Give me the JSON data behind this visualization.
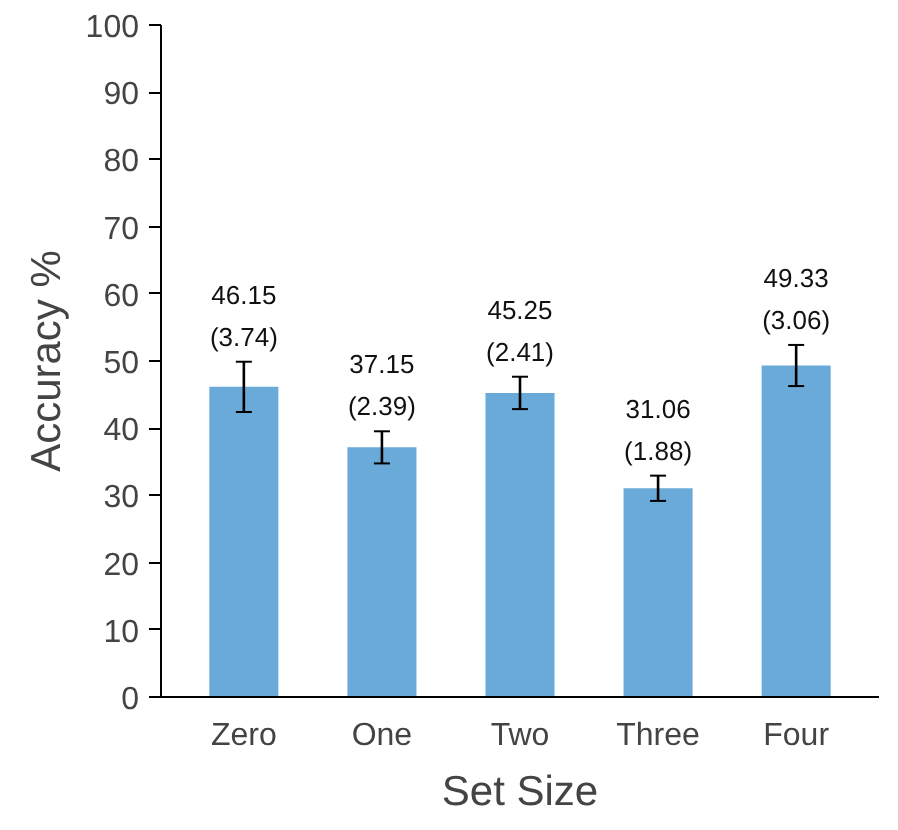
{
  "chart_data": {
    "type": "bar",
    "xlabel": "Set Size",
    "ylabel": "Accuracy %",
    "categories": [
      "Zero",
      "One",
      "Two",
      "Three",
      "Four"
    ],
    "values": [
      46.15,
      37.15,
      45.25,
      31.06,
      49.33
    ],
    "errors": [
      3.74,
      2.39,
      2.41,
      1.88,
      3.06
    ],
    "value_labels": [
      "46.15\n(3.74)",
      "37.15\n(2.39)",
      "45.25\n(2.41)",
      "31.06\n(1.88)",
      "49.33\n(3.06)"
    ],
    "color": "#6aaad8",
    "ylim": [
      0,
      100
    ],
    "yticks": [
      0,
      10,
      20,
      30,
      40,
      50,
      60,
      70,
      80,
      90,
      100
    ],
    "grid": false
  }
}
